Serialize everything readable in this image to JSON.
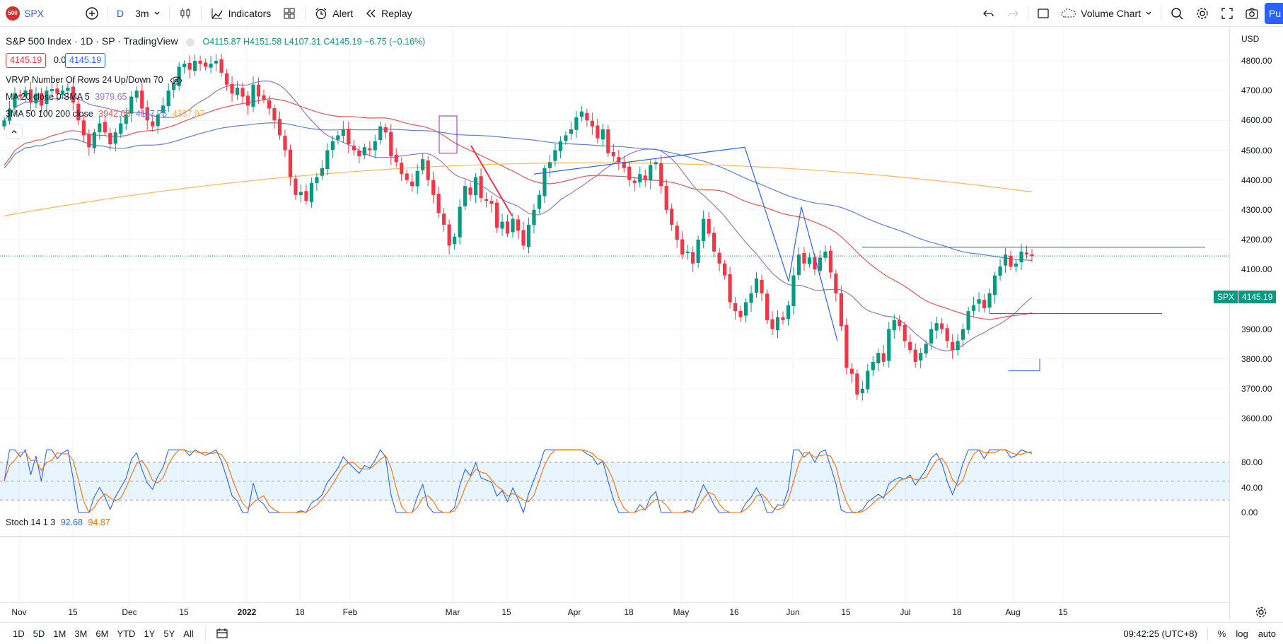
{
  "toolbar": {
    "symbol": "SPX",
    "symbol_badge": "500",
    "interval": "D",
    "range": "3m",
    "indicators_label": "Indicators",
    "alert_label": "Alert",
    "replay_label": "Replay",
    "chart_type_label": "Volume Chart",
    "publish_label": "Pu",
    "icons": [
      "add-symbol-icon",
      "candles-icon",
      "indicators-icon",
      "templates-icon",
      "alert-icon",
      "replay-icon",
      "undo-icon",
      "redo-icon",
      "rectangle-icon",
      "cloud-icon",
      "search-icon",
      "gear-icon",
      "fullscreen-icon",
      "camera-icon"
    ]
  },
  "legend": {
    "title": "S&P 500 Index · 1D · SP · TradingView",
    "o": "O4115.87",
    "h": "H4151.58",
    "l": "L4107.31",
    "c": "C4145.19",
    "chg": "−6.75 (−0.16%)",
    "bid": "4145.19",
    "spread": "0.00",
    "ask": "4145.19",
    "vrvp": "VRVP Number Of Rows 24 Up/Down 70",
    "ma_label": "MA 20 close 0 SMA 5",
    "ma_val": "3979.65",
    "ma3_label": "3MA 50 100 200 close",
    "ma3_v1": "3942.03",
    "ma3_v2": "4117.75",
    "ma3_v3": "4337.97",
    "stoch_label": "Stoch 14 1 3",
    "stoch_k": "92.68",
    "stoch_d": "94.87"
  },
  "price_scale": {
    "currency": "USD",
    "ticks": [
      "4800.00",
      "4700.00",
      "4600.00",
      "4500.00",
      "4400.00",
      "4300.00",
      "4200.00",
      "4100.00",
      "4000.00",
      "3900.00",
      "3800.00",
      "3700.00",
      "3600.00"
    ],
    "current_symbol": "SPX",
    "current_price": "4145.19",
    "stoch_ticks": [
      "80.00",
      "40.00",
      "0.00"
    ]
  },
  "time_scale": {
    "ticks": [
      "Nov",
      "15",
      "Dec",
      "15",
      "2022",
      "18",
      "Feb",
      "Mar",
      "15",
      "Apr",
      "18",
      "May",
      "16",
      "Jun",
      "15",
      "Jul",
      "18",
      "Aug",
      "15"
    ]
  },
  "bottom_bar": {
    "ranges": [
      "1D",
      "5D",
      "1M",
      "3M",
      "6M",
      "YTD",
      "1Y",
      "5Y",
      "All"
    ],
    "clock": "09:42:25 (UTC+8)",
    "pct": "%",
    "log": "log",
    "auto": "auto"
  },
  "colors": {
    "up": "#089981",
    "down": "#f23645",
    "ma20": "#9575cd",
    "ma50": "#ef5350",
    "ma100": "#5b7fdd",
    "ma200": "#ffb74d",
    "stoch_k": "#2962ff",
    "stoch_d": "#ff6d00",
    "accent": "#2962ff"
  },
  "chart_data": {
    "type": "candlestick",
    "ylim": [
      3550,
      4850
    ],
    "closes": [
      4600,
      4640,
      4690,
      4680,
      4700,
      4660,
      4690,
      4650,
      4700,
      4705,
      4690,
      4700,
      4710,
      4660,
      4600,
      4550,
      4510,
      4560,
      4590,
      4560,
      4520,
      4560,
      4590,
      4620,
      4680,
      4700,
      4640,
      4600,
      4580,
      4620,
      4650,
      4700,
      4720,
      4780,
      4790,
      4770,
      4800,
      4790,
      4780,
      4790,
      4800,
      4760,
      4720,
      4690,
      4710,
      4680,
      4650,
      4720,
      4680,
      4670,
      4640,
      4600,
      4550,
      4500,
      4410,
      4350,
      4360,
      4330,
      4390,
      4410,
      4440,
      4500,
      4530,
      4550,
      4570,
      4520,
      4500,
      4480,
      4510,
      4500,
      4530,
      4580,
      4560,
      4480,
      4460,
      4420,
      4400,
      4380,
      4430,
      4470,
      4400,
      4350,
      4290,
      4250,
      4180,
      4210,
      4310,
      4380,
      4350,
      4410,
      4340,
      4330,
      4320,
      4240,
      4260,
      4220,
      4270,
      4230,
      4180,
      4250,
      4300,
      4350,
      4440,
      4460,
      4500,
      4530,
      4550,
      4570,
      4610,
      4630,
      4600,
      4580,
      4540,
      4570,
      4490,
      4480,
      4460,
      4440,
      4400,
      4390,
      4420,
      4400,
      4450,
      4460,
      4380,
      4300,
      4250,
      4200,
      4150,
      4160,
      4120,
      4200,
      4270,
      4220,
      4160,
      4120,
      4080,
      3990,
      3960,
      3940,
      3990,
      4020,
      4070,
      4020,
      3930,
      3900,
      3940,
      3930,
      3980,
      4080,
      4150,
      4120,
      4140,
      4100,
      4140,
      4160,
      4090,
      4020,
      3910,
      3770,
      3750,
      3680,
      3700,
      3760,
      3790,
      3820,
      3790,
      3900,
      3930,
      3910,
      3860,
      3830,
      3790,
      3820,
      3850,
      3900,
      3920,
      3900,
      3860,
      3830,
      3860,
      3900,
      3960,
      3980,
      4000,
      3970,
      4020,
      4080,
      4110,
      4150,
      4110,
      4120,
      4160,
      4150,
      4145
    ],
    "stoch_levels": [
      20,
      50,
      80
    ]
  }
}
